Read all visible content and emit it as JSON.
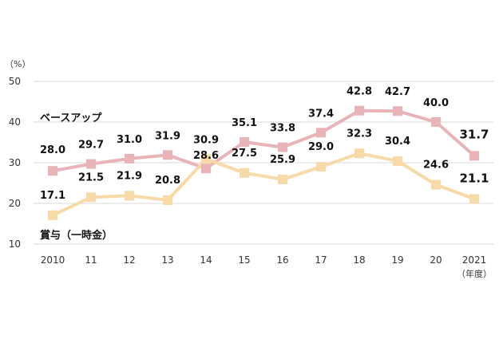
{
  "chart_data": {
    "type": "line",
    "categories": [
      "2010",
      "11",
      "12",
      "13",
      "14",
      "15",
      "16",
      "17",
      "18",
      "19",
      "20",
      "2021"
    ],
    "x_unit": "（年度）",
    "y_unit": "（%）",
    "ylim": [
      10,
      50
    ],
    "yticks": [
      "10",
      "20",
      "30",
      "40",
      "50"
    ],
    "grid": true,
    "series": [
      {
        "name": "ベースアップ",
        "color": "#e8b4b8",
        "values": [
          28.0,
          29.7,
          31.0,
          31.9,
          28.6,
          35.1,
          33.8,
          37.4,
          42.8,
          42.7,
          40.0,
          31.7
        ],
        "labels": [
          "28.0",
          "29.7",
          "31.0",
          "31.9",
          "28.6",
          "35.1",
          "33.8",
          "37.4",
          "42.8",
          "42.7",
          "40.0",
          "31.7"
        ]
      },
      {
        "name": "賞与（一時金）",
        "color": "#f8d9a8",
        "values": [
          17.1,
          21.5,
          21.9,
          20.8,
          30.9,
          27.5,
          25.9,
          29.0,
          32.3,
          30.4,
          24.6,
          21.1
        ],
        "labels": [
          "17.1",
          "21.5",
          "21.9",
          "20.8",
          "30.9",
          "27.5",
          "25.9",
          "29.0",
          "32.3",
          "30.4",
          "24.6",
          "21.1"
        ]
      }
    ]
  }
}
